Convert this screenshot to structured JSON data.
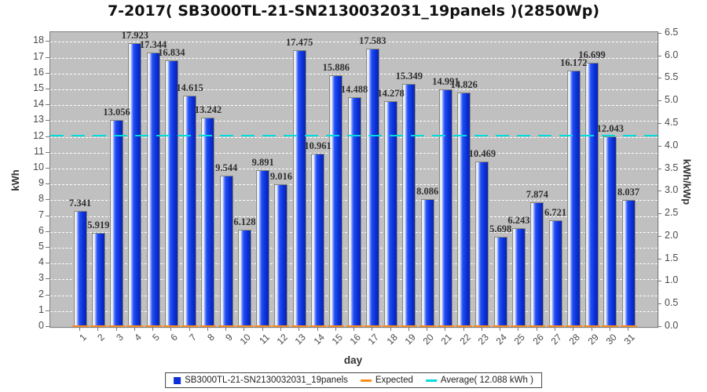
{
  "title": "7-2017( SB3000TL-21-SN2130032031_19panels )(2850Wp)",
  "chart_data": {
    "type": "bar",
    "title": "7-2017( SB3000TL-21-SN2130032031_19panels )(2850Wp)",
    "xlabel": "day",
    "ylabel_left": "kWh",
    "ylabel_right": "kWh/kWp",
    "categories": [
      1,
      2,
      3,
      4,
      5,
      6,
      7,
      8,
      9,
      10,
      11,
      12,
      13,
      14,
      15,
      16,
      17,
      18,
      19,
      20,
      21,
      22,
      23,
      24,
      25,
      26,
      27,
      28,
      29,
      30,
      31
    ],
    "series": [
      {
        "name": "SB3000TL-21-SN2130032031_19panels",
        "color": "#0b2fd8",
        "values": [
          7.341,
          5.919,
          13.056,
          17.923,
          17.344,
          16.834,
          14.615,
          13.242,
          9.544,
          6.128,
          9.891,
          9.016,
          17.475,
          10.961,
          15.886,
          14.488,
          17.583,
          14.278,
          15.349,
          8.086,
          14.991,
          14.826,
          10.469,
          5.698,
          6.243,
          7.874,
          6.721,
          16.172,
          16.699,
          12.043,
          8.037
        ]
      }
    ],
    "expected": {
      "name": "Expected",
      "color": "#ff8c1a",
      "value_per_day": 0
    },
    "average": {
      "value": 12.088,
      "label": "Average( 12.088 kWh )",
      "color": "#00dcdc"
    },
    "ylim_left": [
      0,
      18.6
    ],
    "yticks_left": [
      0,
      1,
      2,
      3,
      4,
      5,
      6,
      7,
      8,
      9,
      10,
      11,
      12,
      13,
      14,
      15,
      16,
      17,
      18
    ],
    "ylim_right": [
      0,
      6.5
    ],
    "yticks_right": [
      0.0,
      0.5,
      1.0,
      1.5,
      2.0,
      2.5,
      3.0,
      3.5,
      4.0,
      4.5,
      5.0,
      5.5,
      6.0,
      6.5
    ],
    "grid": "horizontal-white-dashed",
    "legend_position": "bottom",
    "plot_bg": "#c0c0c0"
  },
  "legend": {
    "items": [
      {
        "label": "SB3000TL-21-SN2130032031_19panels",
        "swatch": "square",
        "color": "#0b2fd8"
      },
      {
        "label": "Expected",
        "swatch": "dash",
        "color": "#ff8c1a"
      },
      {
        "label": "Average( 12.088 kWh )",
        "swatch": "dash",
        "color": "#00dcdc"
      }
    ]
  }
}
